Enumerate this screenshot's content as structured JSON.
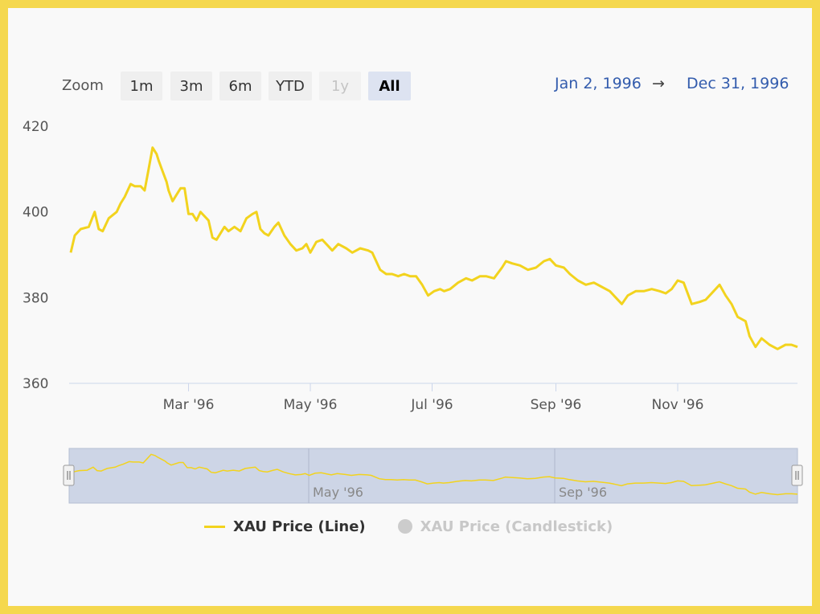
{
  "range_selector": {
    "zoom_label": "Zoom",
    "buttons": [
      {
        "label": "1m",
        "state": "normal"
      },
      {
        "label": "3m",
        "state": "normal"
      },
      {
        "label": "6m",
        "state": "normal"
      },
      {
        "label": "YTD",
        "state": "normal"
      },
      {
        "label": "1y",
        "state": "disabled"
      },
      {
        "label": "All",
        "state": "active"
      }
    ],
    "from": "Jan 2, 1996",
    "arrow": "→",
    "to": "Dec 31, 1996"
  },
  "legend": {
    "line_label": "XAU Price (Line)",
    "candle_label": "XAU Price (Candlestick)"
  },
  "navigator": {
    "ticks": [
      "May '96",
      "Sep '96"
    ],
    "handle_glyph": "II"
  },
  "colors": {
    "series": "#f2d31e",
    "navigator_fill": "#cdd5e6",
    "accent": "#335cad",
    "frame": "#f5d84e"
  },
  "chart_data": {
    "type": "line",
    "title": "",
    "xlabel": "",
    "ylabel": "",
    "ylim": [
      360,
      420
    ],
    "yticks": [
      360,
      380,
      400,
      420
    ],
    "xticks": [
      {
        "label": "Mar '96",
        "date": "1996-03-01"
      },
      {
        "label": "May '96",
        "date": "1996-05-01"
      },
      {
        "label": "Jul '96",
        "date": "1996-07-01"
      },
      {
        "label": "Sep '96",
        "date": "1996-09-01"
      },
      {
        "label": "Nov '96",
        "date": "1996-11-01"
      }
    ],
    "xrange": [
      "1996-01-02",
      "1996-12-31"
    ],
    "grid": false,
    "legend_position": "bottom",
    "series": [
      {
        "name": "XAU Price (Line)",
        "x": [
          "1996-01-02",
          "1996-01-04",
          "1996-01-07",
          "1996-01-11",
          "1996-01-14",
          "1996-01-16",
          "1996-01-18",
          "1996-01-21",
          "1996-01-25",
          "1996-01-27",
          "1996-01-29",
          "1996-02-01",
          "1996-02-03",
          "1996-02-06",
          "1996-02-08",
          "1996-02-10",
          "1996-02-12",
          "1996-02-14",
          "1996-02-15",
          "1996-02-17",
          "1996-02-19",
          "1996-02-20",
          "1996-02-22",
          "1996-02-24",
          "1996-02-26",
          "1996-02-28",
          "1996-03-01",
          "1996-03-03",
          "1996-03-05",
          "1996-03-07",
          "1996-03-11",
          "1996-03-13",
          "1996-03-15",
          "1996-03-19",
          "1996-03-21",
          "1996-03-24",
          "1996-03-27",
          "1996-03-30",
          "1996-04-02",
          "1996-04-04",
          "1996-04-06",
          "1996-04-08",
          "1996-04-10",
          "1996-04-13",
          "1996-04-15",
          "1996-04-18",
          "1996-04-21",
          "1996-04-24",
          "1996-04-27",
          "1996-04-29",
          "1996-05-01",
          "1996-05-04",
          "1996-05-07",
          "1996-05-10",
          "1996-05-12",
          "1996-05-15",
          "1996-05-19",
          "1996-05-22",
          "1996-05-26",
          "1996-05-30",
          "1996-06-01",
          "1996-06-05",
          "1996-06-08",
          "1996-06-11",
          "1996-06-14",
          "1996-06-17",
          "1996-06-20",
          "1996-06-23",
          "1996-06-26",
          "1996-06-29",
          "1996-07-02",
          "1996-07-05",
          "1996-07-07",
          "1996-07-10",
          "1996-07-14",
          "1996-07-18",
          "1996-07-21",
          "1996-07-25",
          "1996-07-28",
          "1996-08-01",
          "1996-08-05",
          "1996-08-07",
          "1996-08-10",
          "1996-08-14",
          "1996-08-18",
          "1996-08-22",
          "1996-08-26",
          "1996-08-29",
          "1996-09-01",
          "1996-09-05",
          "1996-09-08",
          "1996-09-12",
          "1996-09-16",
          "1996-09-20",
          "1996-09-24",
          "1996-09-28",
          "1996-10-01",
          "1996-10-04",
          "1996-10-07",
          "1996-10-11",
          "1996-10-15",
          "1996-10-19",
          "1996-10-23",
          "1996-10-26",
          "1996-10-29",
          "1996-11-01",
          "1996-11-04",
          "1996-11-08",
          "1996-11-12",
          "1996-11-15",
          "1996-11-19",
          "1996-11-22",
          "1996-11-25",
          "1996-11-28",
          "1996-12-01",
          "1996-12-05",
          "1996-12-07",
          "1996-12-10",
          "1996-12-13",
          "1996-12-17",
          "1996-12-21",
          "1996-12-25",
          "1996-12-28",
          "1996-12-31"
        ],
        "values": [
          390.5,
          394.5,
          396.0,
          396.5,
          400.0,
          396.0,
          395.5,
          398.5,
          400.0,
          402.0,
          403.5,
          406.5,
          406.0,
          406.0,
          405.0,
          410.0,
          415.0,
          413.5,
          412.0,
          409.5,
          407.0,
          405.0,
          402.5,
          404.0,
          405.5,
          405.5,
          399.5,
          399.5,
          398.0,
          400.0,
          398.0,
          394.0,
          393.5,
          396.5,
          395.5,
          396.5,
          395.5,
          398.5,
          399.5,
          400.0,
          396.0,
          395.0,
          394.5,
          396.5,
          397.5,
          394.5,
          392.5,
          391.0,
          391.5,
          392.5,
          390.5,
          393.0,
          393.5,
          392.0,
          391.0,
          392.5,
          391.5,
          390.5,
          391.5,
          391.0,
          390.5,
          386.5,
          385.5,
          385.5,
          385.0,
          385.5,
          385.0,
          385.0,
          383.0,
          380.5,
          381.5,
          382.0,
          381.5,
          382.0,
          383.5,
          384.5,
          384.0,
          385.0,
          385.0,
          384.5,
          387.0,
          388.5,
          388.0,
          387.5,
          386.5,
          387.0,
          388.5,
          389.0,
          387.5,
          387.0,
          385.5,
          384.0,
          383.0,
          383.5,
          382.5,
          381.5,
          380.0,
          378.5,
          380.5,
          381.5,
          381.5,
          382.0,
          381.5,
          381.0,
          382.0,
          384.0,
          383.5,
          378.5,
          379.0,
          379.5,
          381.5,
          383.0,
          380.5,
          378.5,
          375.5,
          374.5,
          371.0,
          368.5,
          370.5,
          369.0,
          368.0,
          369.0,
          369.0,
          368.5
        ]
      },
      {
        "name": "XAU Price (Candlestick)",
        "visible": false
      }
    ]
  }
}
